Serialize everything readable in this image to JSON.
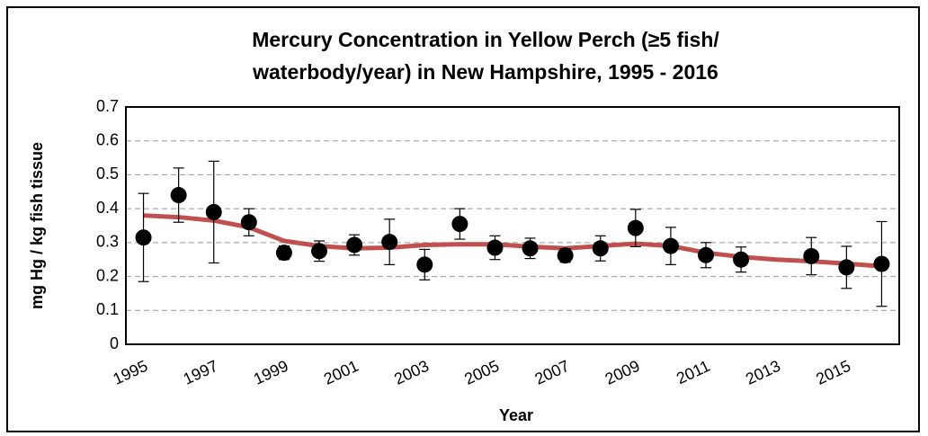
{
  "chart_data": {
    "type": "line",
    "title": [
      "Mercury Concentration in Yellow Perch (≥5 fish/",
      "waterbody/year) in New Hampshire, 1995 - 2016"
    ],
    "x_label": "Year",
    "y_label": "mg Hg / kg fish tissue",
    "categories": [
      "1995",
      null,
      "1997",
      null,
      "1999",
      null,
      "2001",
      null,
      "2003",
      null,
      "2005",
      null,
      "2007",
      null,
      "2009",
      null,
      "2011",
      null,
      "2013",
      null,
      "2015",
      null
    ],
    "series": [
      {
        "style": "markers",
        "color": "#000000",
        "values": [
          0.315,
          0.44,
          0.39,
          0.36,
          0.27,
          0.275,
          0.293,
          0.302,
          0.235,
          0.355,
          0.285,
          0.283,
          0.262,
          0.283,
          0.343,
          0.29,
          0.263,
          0.25,
          null,
          0.26,
          0.227,
          0.237
        ],
        "errors": [
          0.13,
          0.08,
          0.15,
          0.04,
          0.02,
          0.03,
          0.03,
          0.067,
          0.045,
          0.045,
          0.035,
          0.03,
          0.02,
          0.037,
          0.055,
          0.055,
          0.037,
          0.037,
          null,
          0.055,
          0.062,
          0.125
        ]
      },
      {
        "style": "line",
        "color": "#c0504d",
        "values": [
          0.38,
          0.375,
          0.365,
          0.345,
          0.305,
          0.29,
          0.283,
          0.285,
          0.293,
          0.295,
          0.295,
          0.288,
          0.283,
          0.29,
          0.297,
          0.29,
          0.27,
          0.258,
          0.25,
          0.245,
          0.238,
          0.23
        ]
      }
    ],
    "ylim": [
      0,
      0.7
    ],
    "yticks": [
      0,
      0.1,
      0.2,
      0.3,
      0.4,
      0.5,
      0.6,
      0.7
    ],
    "grid": true
  }
}
